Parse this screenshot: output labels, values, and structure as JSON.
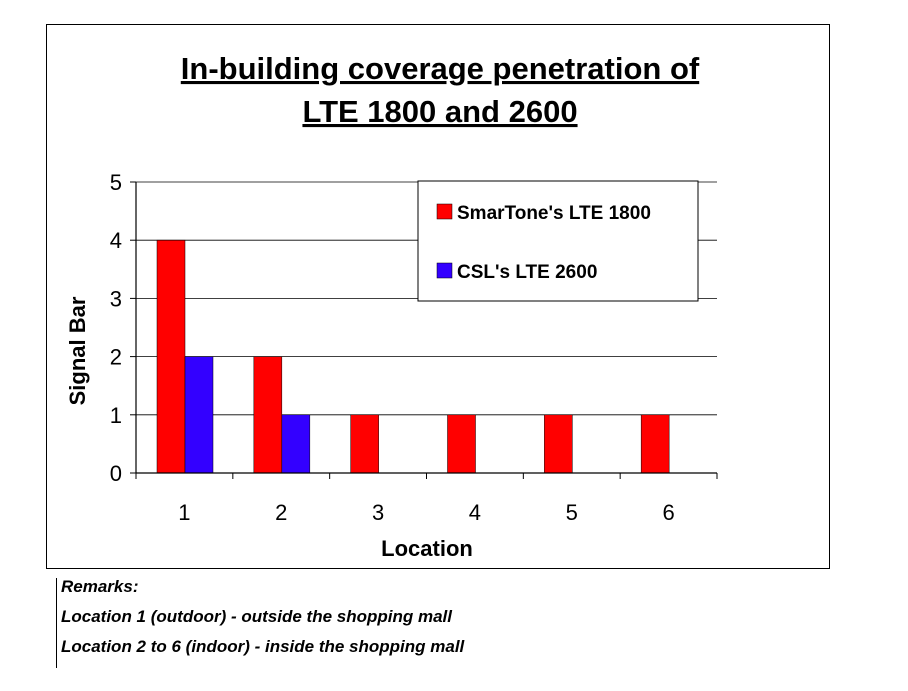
{
  "chart_data": {
    "type": "bar",
    "title_lines": [
      "In-building coverage penetration of",
      "LTE 1800 and 2600"
    ],
    "xlabel": "Location",
    "ylabel": "Signal Bar",
    "categories": [
      "1",
      "2",
      "3",
      "4",
      "5",
      "6"
    ],
    "yticks": [
      "0",
      "1",
      "2",
      "3",
      "4",
      "5"
    ],
    "ylim": [
      0,
      5
    ],
    "grid": true,
    "legend_position": "top-right",
    "series": [
      {
        "name": "SmarTone's LTE 1800",
        "color": "#ff0000",
        "values": [
          4,
          2,
          1,
          1,
          1,
          1
        ]
      },
      {
        "name": "CSL's LTE 2600",
        "color": "#3300ff",
        "values": [
          2,
          1,
          0,
          0,
          0,
          0
        ]
      }
    ]
  },
  "remarks": {
    "heading": "Remarks:",
    "line1": "Location 1 (outdoor) - outside the shopping mall",
    "line2": "Location 2 to 6 (indoor) - inside the shopping mall"
  }
}
